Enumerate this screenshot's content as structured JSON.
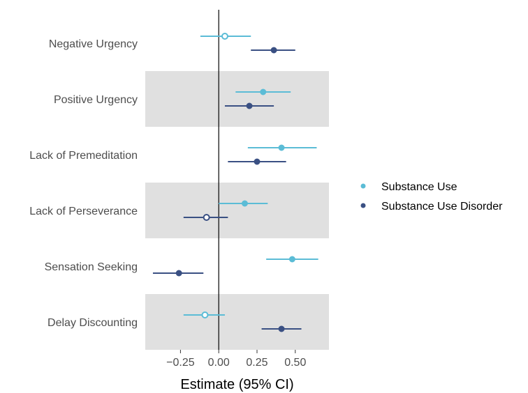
{
  "chart_data": {
    "type": "forest",
    "title": "",
    "xlabel": "Estimate (95% CI)",
    "ylabel": "",
    "xlim": [
      -0.48,
      0.72
    ],
    "x_ticks": [
      {
        "value": -0.25,
        "label": "−0.25"
      },
      {
        "value": 0.0,
        "label": "0.00"
      },
      {
        "value": 0.25,
        "label": "0.25"
      },
      {
        "value": 0.5,
        "label": "0.50"
      }
    ],
    "reference_line": 0,
    "categories": [
      "Negative Urgency",
      "Positive Urgency",
      "Lack of Premeditation",
      "Lack of Perseverance",
      "Sensation Seeking",
      "Delay Discounting"
    ],
    "series": [
      {
        "name": "Substance Use",
        "color": "#5bbcd6",
        "points": [
          {
            "estimate": 0.04,
            "lower": -0.12,
            "upper": 0.21,
            "significant": false
          },
          {
            "estimate": 0.29,
            "lower": 0.11,
            "upper": 0.47,
            "significant": true
          },
          {
            "estimate": 0.41,
            "lower": 0.19,
            "upper": 0.64,
            "significant": true
          },
          {
            "estimate": 0.17,
            "lower": 0.0,
            "upper": 0.32,
            "significant": true
          },
          {
            "estimate": 0.48,
            "lower": 0.31,
            "upper": 0.65,
            "significant": true
          },
          {
            "estimate": -0.09,
            "lower": -0.23,
            "upper": 0.04,
            "significant": false
          }
        ]
      },
      {
        "name": "Substance Use Disorder",
        "color": "#3a5083",
        "points": [
          {
            "estimate": 0.36,
            "lower": 0.21,
            "upper": 0.5,
            "significant": true
          },
          {
            "estimate": 0.2,
            "lower": 0.04,
            "upper": 0.36,
            "significant": true
          },
          {
            "estimate": 0.25,
            "lower": 0.06,
            "upper": 0.44,
            "significant": true
          },
          {
            "estimate": -0.08,
            "lower": -0.23,
            "upper": 0.06,
            "significant": false
          },
          {
            "estimate": -0.26,
            "lower": -0.43,
            "upper": -0.1,
            "significant": true
          },
          {
            "estimate": 0.41,
            "lower": 0.28,
            "upper": 0.54,
            "significant": true
          }
        ]
      }
    ],
    "row_shading": "alternating-gray",
    "grid": false,
    "legend_position": "right"
  }
}
